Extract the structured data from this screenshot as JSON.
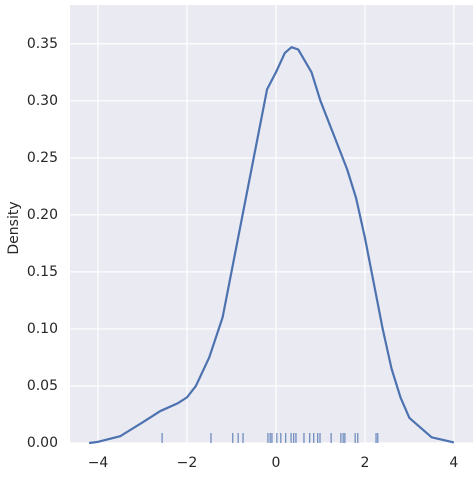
{
  "chart_data": {
    "type": "kde",
    "ylabel": "Density",
    "xlim": [
      -4.63,
      4.43
    ],
    "ylim": [
      0,
      0.384
    ],
    "xticks": [
      {
        "value": -4,
        "label": "−4"
      },
      {
        "value": -2,
        "label": "−2"
      },
      0,
      2,
      4
    ],
    "yticks": [
      {
        "value": 0,
        "label": "0.00"
      },
      {
        "value": 0.05,
        "label": "0.05"
      },
      {
        "value": 0.1,
        "label": "0.10"
      },
      {
        "value": 0.15,
        "label": "0.15"
      },
      {
        "value": 0.2,
        "label": "0.20"
      },
      {
        "value": 0.25,
        "label": "0.25"
      },
      {
        "value": 0.3,
        "label": "0.30"
      },
      {
        "value": 0.35,
        "label": "0.35"
      }
    ],
    "grid": true,
    "background": "#eaeaf2",
    "x": [
      -4.2,
      -4.0,
      -3.5,
      -3.0,
      -2.6,
      -2.2,
      -2.0,
      -1.8,
      -1.5,
      -1.2,
      -1.0,
      -0.8,
      -0.5,
      -0.2,
      0.0,
      0.2,
      0.35,
      0.5,
      0.8,
      1.0,
      1.3,
      1.6,
      1.8,
      2.0,
      2.2,
      2.4,
      2.6,
      2.8,
      3.0,
      3.5,
      4.0
    ],
    "series": [
      {
        "color": "#4c72b0",
        "values": [
          0.0,
          0.001,
          0.006,
          0.018,
          0.028,
          0.035,
          0.04,
          0.05,
          0.075,
          0.11,
          0.15,
          0.19,
          0.25,
          0.31,
          0.325,
          0.342,
          0.347,
          0.345,
          0.325,
          0.3,
          0.27,
          0.24,
          0.215,
          0.18,
          0.14,
          0.1,
          0.065,
          0.04,
          0.022,
          0.005,
          0.0005
        ]
      }
    ],
    "rug": {
      "color": "#4c72b0",
      "x": [
        -2.56,
        -1.46,
        -0.97,
        -0.85,
        -0.74,
        -0.18,
        -0.13,
        -0.09,
        0.02,
        0.11,
        0.22,
        0.34,
        0.4,
        0.45,
        0.63,
        0.76,
        0.85,
        0.94,
        0.99,
        1.24,
        1.46,
        1.51,
        1.55,
        1.78,
        1.84,
        2.25,
        2.29
      ]
    }
  }
}
